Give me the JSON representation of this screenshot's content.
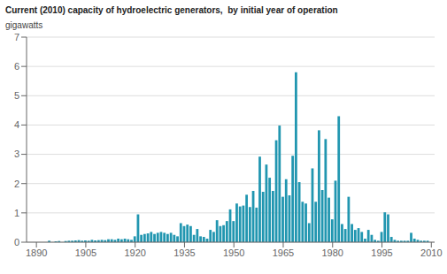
{
  "chart_data": {
    "type": "bar",
    "title": "Current (2010) capacity of hydroelectric generators,  by initial year of operation",
    "ylabel": "gigawatts",
    "color": "#2196b0",
    "xlim": [
      1887,
      2011
    ],
    "ylim": [
      0,
      7
    ],
    "yticks": [
      0,
      1,
      2,
      3,
      4,
      5,
      6,
      7
    ],
    "xticks": [
      1890,
      1905,
      1920,
      1935,
      1950,
      1965,
      1980,
      1995,
      2010
    ],
    "grid": "y",
    "x": [
      1894,
      1896,
      1897,
      1899,
      1900,
      1901,
      1902,
      1903,
      1904,
      1905,
      1906,
      1907,
      1908,
      1909,
      1910,
      1911,
      1912,
      1913,
      1914,
      1915,
      1916,
      1917,
      1918,
      1919,
      1920,
      1921,
      1922,
      1923,
      1924,
      1925,
      1926,
      1927,
      1928,
      1929,
      1930,
      1931,
      1932,
      1933,
      1934,
      1935,
      1936,
      1937,
      1938,
      1939,
      1940,
      1941,
      1942,
      1943,
      1944,
      1945,
      1946,
      1947,
      1948,
      1949,
      1950,
      1951,
      1952,
      1953,
      1954,
      1955,
      1956,
      1957,
      1958,
      1959,
      1960,
      1961,
      1962,
      1963,
      1964,
      1965,
      1966,
      1967,
      1968,
      1969,
      1970,
      1971,
      1972,
      1973,
      1974,
      1975,
      1976,
      1977,
      1978,
      1979,
      1980,
      1981,
      1982,
      1983,
      1984,
      1985,
      1986,
      1987,
      1988,
      1989,
      1990,
      1991,
      1992,
      1993,
      1994,
      1995,
      1996,
      1997,
      1998,
      1999,
      2000,
      2001,
      2002,
      2003,
      2004,
      2005,
      2006,
      2007,
      2008,
      2009
    ],
    "values": [
      0.05,
      0.03,
      0.04,
      0.04,
      0.05,
      0.05,
      0.06,
      0.07,
      0.05,
      0.06,
      0.05,
      0.08,
      0.06,
      0.07,
      0.08,
      0.07,
      0.1,
      0.1,
      0.08,
      0.12,
      0.1,
      0.12,
      0.1,
      0.08,
      0.2,
      0.95,
      0.25,
      0.28,
      0.3,
      0.35,
      0.28,
      0.32,
      0.35,
      0.32,
      0.28,
      0.32,
      0.25,
      0.2,
      0.65,
      0.55,
      0.6,
      0.55,
      0.25,
      0.45,
      0.2,
      0.18,
      0.12,
      0.42,
      0.35,
      0.75,
      0.55,
      0.58,
      0.72,
      1.12,
      0.72,
      1.32,
      1.22,
      1.25,
      1.62,
      1.2,
      1.75,
      1.18,
      2.92,
      1.72,
      2.65,
      2.2,
      1.75,
      3.48,
      3.98,
      1.55,
      2.15,
      1.6,
      2.95,
      5.8,
      2.05,
      1.38,
      1.32,
      0.65,
      2.52,
      1.38,
      3.82,
      1.78,
      3.52,
      1.52,
      0.78,
      2.1,
      4.3,
      0.62,
      0.45,
      1.55,
      0.62,
      0.42,
      0.48,
      0.35,
      0.12,
      0.42,
      0.25,
      0.08,
      0.05,
      0.35,
      1.02,
      0.95,
      0.18,
      0.08,
      0.05,
      0.05,
      0.05,
      0.05,
      0.32,
      0.12,
      0.08,
      0.05,
      0.05,
      0.05
    ]
  }
}
